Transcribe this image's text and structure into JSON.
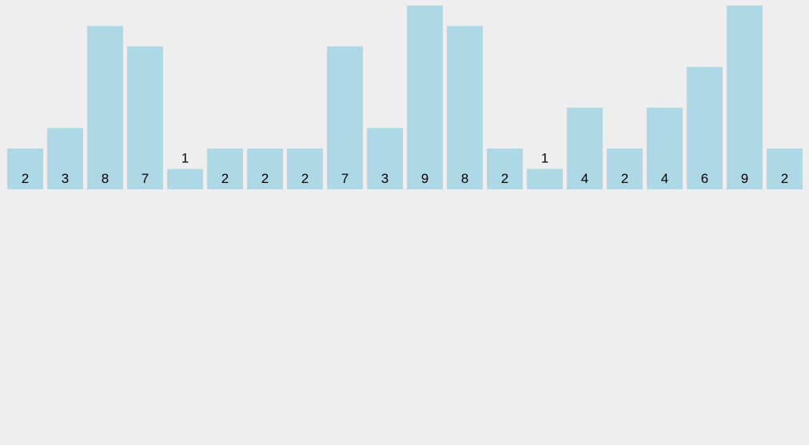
{
  "chart_data": {
    "type": "bar",
    "values": [
      2,
      3,
      8,
      7,
      1,
      2,
      2,
      2,
      7,
      3,
      9,
      8,
      2,
      1,
      4,
      2,
      4,
      6,
      9,
      2
    ],
    "ylim": [
      0,
      9
    ],
    "grid": false,
    "data_labels": true,
    "bar_color": "#add8e6",
    "background_color": "#eeeeee"
  }
}
